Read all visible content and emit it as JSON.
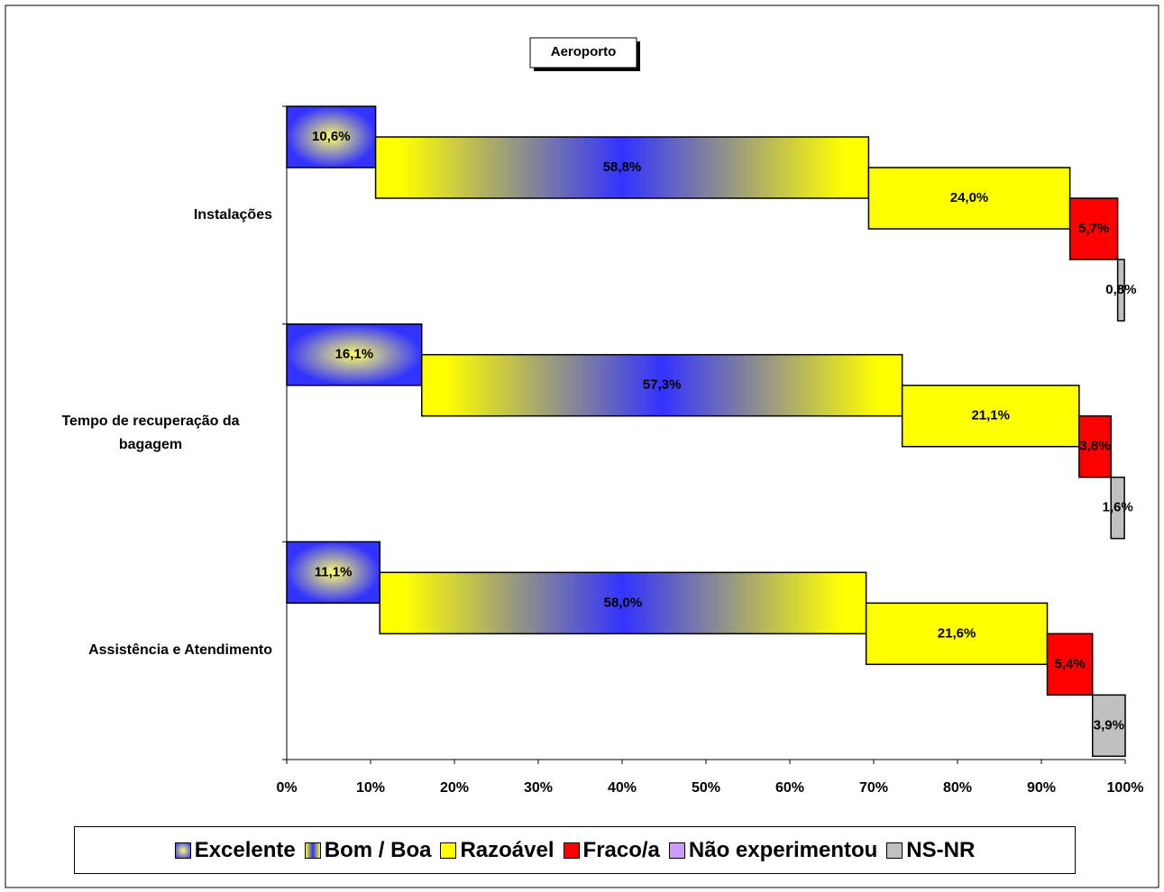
{
  "chart_data": {
    "type": "cascade-bar",
    "title": "Aeroporto",
    "categories": [
      "Instalações",
      "Tempo de recuperação da bagagem",
      "Assistência e Atendimento"
    ],
    "series": [
      {
        "name": "Excelente",
        "color": "#3333ff",
        "gradient": "radial",
        "gradient_color": "#ffff66",
        "values": [
          10.6,
          16.1,
          11.1
        ],
        "value_labels": [
          "10,6%",
          "16,1%",
          "11,1%"
        ]
      },
      {
        "name": "Bom / Boa",
        "color": "#ffff00",
        "gradient": "linear",
        "gradient_color": "#3333ff",
        "values": [
          58.8,
          57.3,
          58.0
        ],
        "value_labels": [
          "58,8%",
          "57,3%",
          "58,0%"
        ]
      },
      {
        "name": "Razoável",
        "color": "#ffff00",
        "values": [
          24.0,
          21.1,
          21.6
        ],
        "value_labels": [
          "24,0%",
          "21,1%",
          "21,6%"
        ]
      },
      {
        "name": "Fraco/a",
        "color": "#ff0000",
        "values": [
          5.7,
          3.8,
          5.4
        ],
        "value_labels": [
          "5,7%",
          "3,8%",
          "5,4%"
        ]
      },
      {
        "name": "Não experimentou",
        "color": "#cc99ff",
        "values": [
          0,
          0,
          0
        ],
        "value_labels": [
          null,
          null,
          null
        ]
      },
      {
        "name": "NS-NR",
        "color": "#c0c0c0",
        "values": [
          0.8,
          1.6,
          3.9
        ],
        "value_labels": [
          "0,8%",
          "1,6%",
          "3,9%"
        ]
      }
    ],
    "xlim": [
      0,
      100
    ],
    "xticks": [
      {
        "value": 0,
        "label": "0%"
      },
      {
        "value": 10,
        "label": "10%"
      },
      {
        "value": 20,
        "label": "20%"
      },
      {
        "value": 30,
        "label": "30%"
      },
      {
        "value": 40,
        "label": "40%"
      },
      {
        "value": 50,
        "label": "50%"
      },
      {
        "value": 60,
        "label": "60%"
      },
      {
        "value": 70,
        "label": "70%"
      },
      {
        "value": 80,
        "label": "80%"
      },
      {
        "value": 90,
        "label": "90%"
      },
      {
        "value": 100,
        "label": "100%"
      }
    ]
  }
}
